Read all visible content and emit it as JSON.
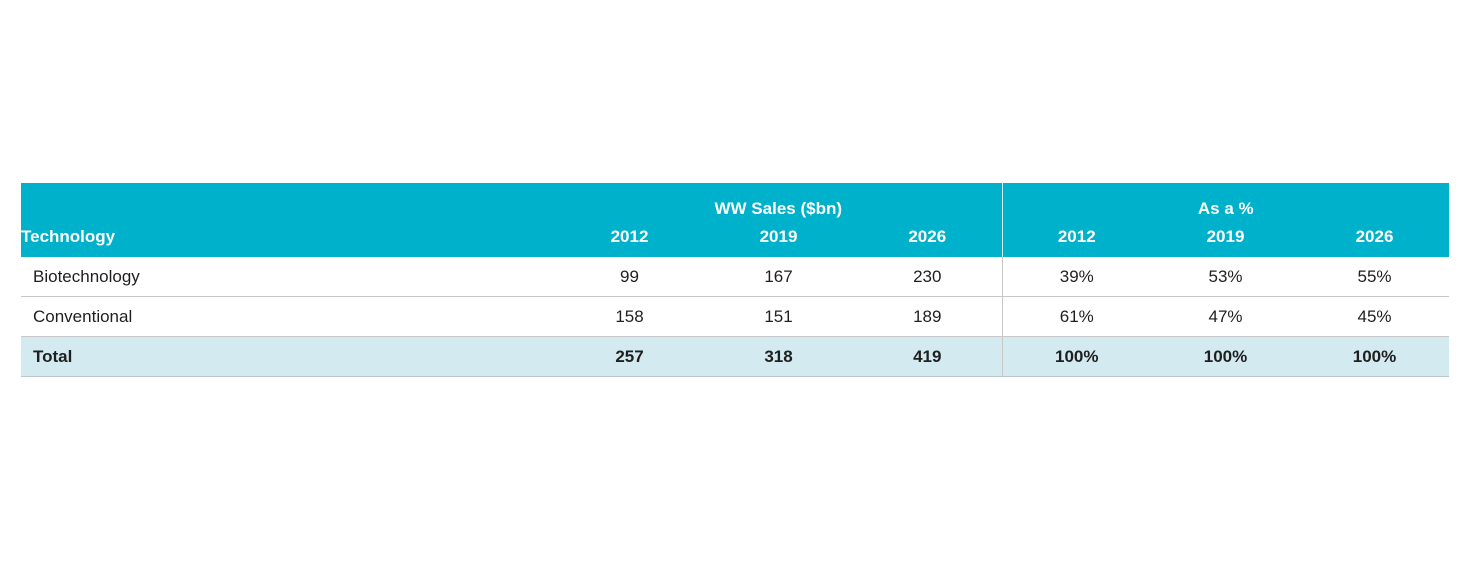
{
  "table": {
    "header": {
      "technology_label": "Technology",
      "group_sales_label": "WW Sales ($bn)",
      "group_pct_label": "As a %",
      "years": [
        "2012",
        "2019",
        "2026"
      ]
    },
    "rows": [
      {
        "technology": "Biotechnology",
        "sales": [
          "99",
          "167",
          "230"
        ],
        "pct": [
          "39%",
          "53%",
          "55%"
        ]
      },
      {
        "technology": "Conventional",
        "sales": [
          "158",
          "151",
          "189"
        ],
        "pct": [
          "61%",
          "47%",
          "45%"
        ]
      }
    ],
    "total": {
      "technology": "Total",
      "sales": [
        "257",
        "318",
        "419"
      ],
      "pct": [
        "100%",
        "100%",
        "100%"
      ]
    }
  },
  "colors": {
    "header_bg": "#00b1cb",
    "total_bg": "#d3eaf1"
  }
}
